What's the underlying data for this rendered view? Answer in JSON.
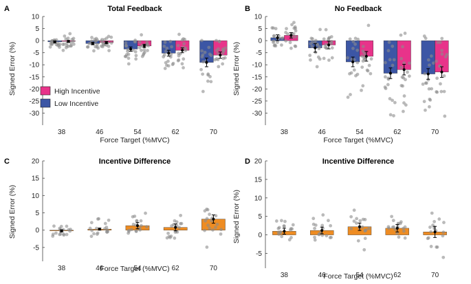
{
  "colors": {
    "high": "#e8338a",
    "low": "#3c56a5",
    "diff": "#ee8c22",
    "dot": "#8c8c8c",
    "axis": "#444444"
  },
  "chart_data": [
    {
      "id": "A",
      "type": "bar",
      "title": "Total Feedback",
      "xlabel": "Force Target (%MVC)",
      "ylabel": "Signed Error (%)",
      "categories": [
        "38",
        "46",
        "54",
        "62",
        "70"
      ],
      "ylim": [
        -35,
        10
      ],
      "yticks": [
        10,
        5,
        0,
        -5,
        -10,
        -15,
        -20,
        -25,
        -30
      ],
      "legend": {
        "position": "bottom-left",
        "entries": [
          "High Incentive",
          "Low Incentive"
        ]
      },
      "series": [
        {
          "name": "Low Incentive",
          "color_key": "low",
          "values": [
            -0.5,
            -1.2,
            -3.5,
            -5.2,
            -9.0
          ],
          "err": [
            0.4,
            0.5,
            0.9,
            1.2,
            1.8
          ]
        },
        {
          "name": "High Incentive",
          "color_key": "high",
          "values": [
            -0.3,
            -0.8,
            -2.2,
            -4.0,
            -6.0
          ],
          "err": [
            0.4,
            0.4,
            0.7,
            1.0,
            1.3
          ]
        }
      ]
    },
    {
      "id": "B",
      "type": "bar",
      "title": "No Feedback",
      "xlabel": "Force Target (%MVC)",
      "ylabel": "Signed Error (%)",
      "categories": [
        "38",
        "46",
        "54",
        "62",
        "70"
      ],
      "ylim": [
        -35,
        10
      ],
      "yticks": [
        10,
        5,
        0,
        -5,
        -10,
        -15,
        -20,
        -25,
        -30
      ],
      "series": [
        {
          "name": "Low Incentive",
          "color_key": "low",
          "values": [
            1.2,
            -3.0,
            -8.8,
            -13.5,
            -13.8
          ],
          "err": [
            1.2,
            1.8,
            2.0,
            2.2,
            2.2
          ]
        },
        {
          "name": "High Incentive",
          "color_key": "high",
          "values": [
            2.2,
            -1.8,
            -6.5,
            -12.0,
            -13.0
          ],
          "err": [
            1.1,
            1.6,
            2.0,
            2.2,
            2.2
          ]
        }
      ]
    },
    {
      "id": "C",
      "type": "bar",
      "title": "Incentive Difference",
      "xlabel": "Force Target (%MVC)",
      "ylabel": "Signed Error (%)",
      "categories": [
        "38",
        "46",
        "54",
        "62",
        "70"
      ],
      "ylim": [
        -9,
        20
      ],
      "yticks": [
        20,
        15,
        10,
        5,
        0,
        -5
      ],
      "series": [
        {
          "name": "Incentive Difference",
          "color_key": "diff",
          "values": [
            -0.2,
            0.3,
            1.3,
            0.8,
            3.2
          ],
          "err": [
            0.3,
            0.3,
            0.9,
            1.0,
            1.2
          ]
        }
      ]
    },
    {
      "id": "D",
      "type": "bar",
      "title": "Incentive Difference",
      "xlabel": "Force Target (%MVC)",
      "ylabel": "Signed Error (%)",
      "categories": [
        "38",
        "46",
        "54",
        "62",
        "70"
      ],
      "ylim": [
        -9,
        20
      ],
      "yticks": [
        20,
        15,
        10,
        5,
        0,
        -5
      ],
      "series": [
        {
          "name": "Incentive Difference",
          "color_key": "diff",
          "values": [
            1.0,
            1.2,
            2.2,
            1.8,
            0.8
          ],
          "err": [
            0.8,
            0.9,
            1.0,
            1.0,
            1.5
          ]
        }
      ]
    }
  ]
}
